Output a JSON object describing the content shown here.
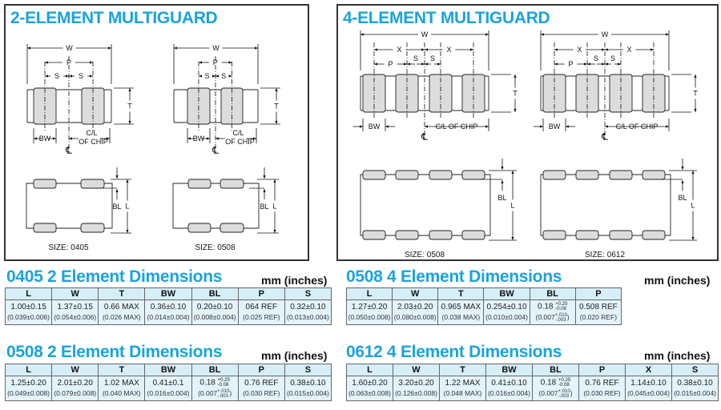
{
  "panels": {
    "two": {
      "title": "2-ELEMENT MULTIGUARD",
      "labels": {
        "w": "W",
        "p": "P",
        "s": "S",
        "t": "T",
        "bw": "BW",
        "cl1": "C/L",
        "cl2": "OF CHIP",
        "cl_symbol": "℄",
        "bl": "BL",
        "l": "L"
      },
      "sizes": [
        "SIZE: 0405",
        "SIZE: 0508"
      ]
    },
    "four": {
      "title": "4-ELEMENT MULTIGUARD",
      "labels": {
        "w": "W",
        "x": "X",
        "p": "P",
        "s": "S",
        "t": "T",
        "bw": "BW",
        "cl": "C/L OF CHIP",
        "cl_symbol": "℄",
        "bl": "BL",
        "l": "L"
      },
      "sizes": [
        "SIZE: 0508",
        "SIZE: 0612"
      ]
    }
  },
  "colors": {
    "accent": "#1aa3e0",
    "header_fill": "#d6eef8",
    "cell_fill": "#e3f3fb",
    "terminal_fill": "#dcdcdc"
  },
  "tables": [
    {
      "title": "0405  2 Element Dimensions",
      "units": "mm (inches)",
      "headers": [
        "L",
        "W",
        "T",
        "BW",
        "BL",
        "P",
        "S"
      ],
      "cells": [
        {
          "mm": "1.00±0.15",
          "in": "(0.039±0.006)"
        },
        {
          "mm": "1.37±0.15",
          "in": "(0.054±0.006)"
        },
        {
          "mm": "0.66 MAX",
          "in": "(0.026 MAX)"
        },
        {
          "mm": "0.36±0.10",
          "in": "(0.014±0.004)"
        },
        {
          "mm": "0.20±0.10",
          "in": "(0.008±0.004)"
        },
        {
          "mm": "064 REF",
          "in": "(0.025 REF)"
        },
        {
          "mm": "0.32±0.10",
          "in": "(0.013±0.004)"
        }
      ]
    },
    {
      "title": "0508 2 Element Dimensions",
      "units": "mm (inches)",
      "headers": [
        "L",
        "W",
        "T",
        "BW",
        "BL",
        "P",
        "S"
      ],
      "cells": [
        {
          "mm": "1.25±0.20",
          "in": "(0.049±0.008)"
        },
        {
          "mm": "2.01±0.20",
          "in": "(0.079±0.008)"
        },
        {
          "mm": "1.02 MAX",
          "in": "(0.040 MAX)"
        },
        {
          "mm": "0.41±0.1",
          "in": "(0.016±0.004)"
        },
        {
          "mm": "0.18",
          "mm_tol": [
            "+0.25",
            "-0.08"
          ],
          "in": "(0.007",
          "in_tol": [
            "+.010",
            "-.003"
          ],
          "in_end": ")"
        },
        {
          "mm": "0.76 REF",
          "in": "(0.030 REF)"
        },
        {
          "mm": "0.38±0.10",
          "in": "(0.015±0.004)"
        }
      ]
    },
    {
      "title": "0508 4 Element Dimensions",
      "units": "mm (inches)",
      "headers": [
        "L",
        "W",
        "T",
        "BW",
        "BL",
        "P"
      ],
      "cells": [
        {
          "mm": "1.27±0.20",
          "in": "(0.050±0.008)"
        },
        {
          "mm": "2.03±0.20",
          "in": "(0.080±0.008)"
        },
        {
          "mm": "0.965 MAX",
          "in": "(0.038 MAX)"
        },
        {
          "mm": "0.254±0.10",
          "in": "(0.010±0.004)"
        },
        {
          "mm": "0.18",
          "mm_tol": [
            "+0.25",
            "-0.08"
          ],
          "in": "(0.007",
          "in_tol": [
            "+.010",
            "-.003"
          ],
          "in_end": ")"
        },
        {
          "mm": "0.508 REF",
          "in": "(0.020 REF)"
        }
      ]
    },
    {
      "title": "0612 4 Element Dimensions",
      "units": "mm (inches)",
      "headers": [
        "L",
        "W",
        "T",
        "BW",
        "BL",
        "P",
        "X",
        "S"
      ],
      "cells": [
        {
          "mm": "1.60±0.20",
          "in": "(0.063±0.008)"
        },
        {
          "mm": "3.20±0.20",
          "in": "(0.126±0.008)"
        },
        {
          "mm": "1.22 MAX",
          "in": "(0.048 MAX)"
        },
        {
          "mm": "0.41±0.10",
          "in": "(0.016±0.004)"
        },
        {
          "mm": "0.18",
          "mm_tol": [
            "+0.25",
            "-0.08"
          ],
          "in": "(0.007",
          "in_tol": [
            "+.010",
            "-.003"
          ],
          "in_end": ")"
        },
        {
          "mm": "0.76 REF",
          "in": "(0.030 REF)"
        },
        {
          "mm": "1.14±0.10",
          "in": "(0.045±0.004)"
        },
        {
          "mm": "0.38±0.10",
          "in": "(0.015±0.004)"
        }
      ]
    }
  ]
}
